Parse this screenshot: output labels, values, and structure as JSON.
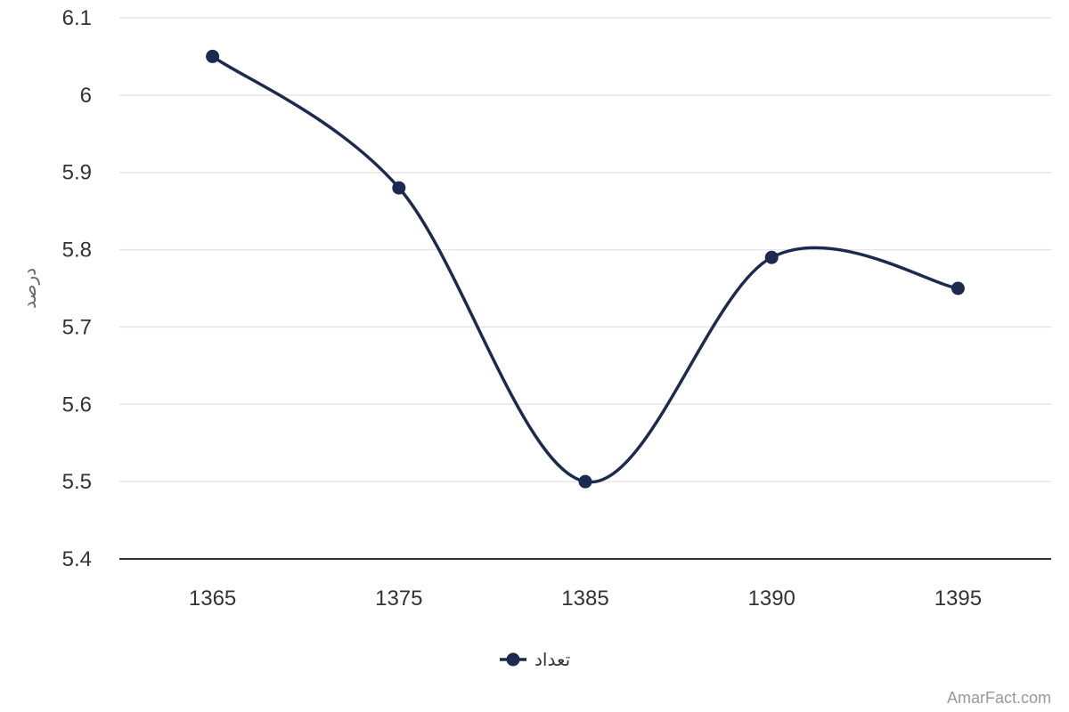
{
  "chart_data": {
    "type": "line",
    "title": "",
    "xlabel": "",
    "ylabel": "درصد",
    "categories": [
      "1365",
      "1375",
      "1385",
      "1390",
      "1395"
    ],
    "series": [
      {
        "name": "تعداد",
        "values": [
          6.05,
          5.88,
          5.5,
          5.79,
          5.75
        ],
        "color": "#1b2a4e",
        "smooth": true,
        "markers": true
      }
    ],
    "ylim": [
      5.4,
      6.1
    ],
    "yticks": [
      "5.4",
      "5.5",
      "5.6",
      "5.7",
      "5.8",
      "5.9",
      "6",
      "6.1"
    ],
    "grid": true,
    "legend": "bottom-center"
  },
  "credit": "AmarFact.com",
  "colors": {
    "series": "#1b2a4e",
    "grid": "#e6e6e6",
    "axis": "#333333",
    "text": "#333333",
    "muted": "#999999"
  }
}
